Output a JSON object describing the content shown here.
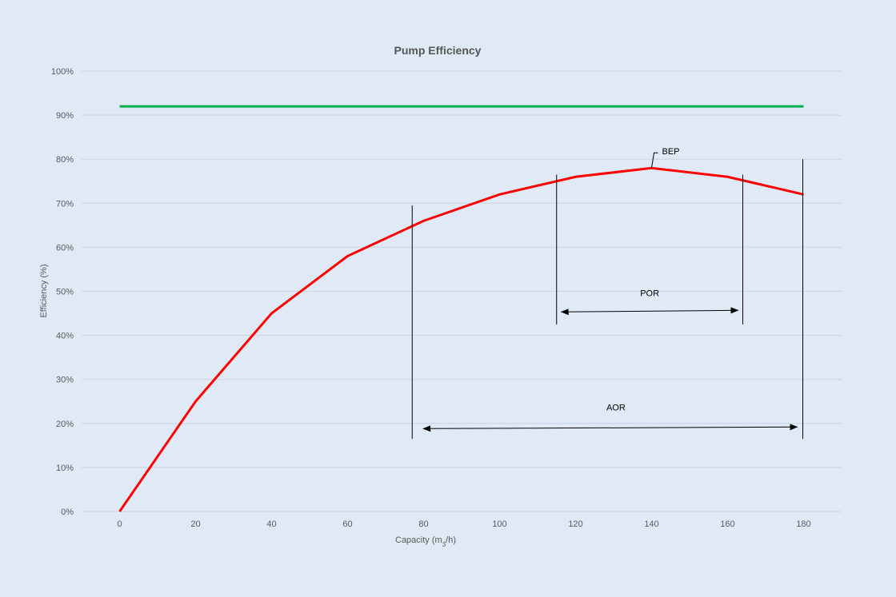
{
  "chart_data": {
    "type": "line",
    "title": "Pump Efficiency",
    "xlabel_parts": {
      "prefix": "Capacity (m",
      "sub": "3",
      "suffix": "/h)"
    },
    "ylabel": "Efficiency (%)",
    "x_ticks": [
      "0",
      "20",
      "40",
      "60",
      "80",
      "100",
      "120",
      "140",
      "160",
      "180"
    ],
    "y_ticks": [
      "0%",
      "10%",
      "20%",
      "30%",
      "40%",
      "50%",
      "60%",
      "70%",
      "80%",
      "90%",
      "100%"
    ],
    "xlim": [
      -10,
      190
    ],
    "ylim": [
      0,
      100
    ],
    "grid": "horizontal",
    "series": [
      {
        "x": [
          0,
          20,
          40,
          60,
          80,
          100,
          120,
          140,
          160,
          180
        ],
        "values": [
          0,
          25,
          45,
          58,
          66,
          72,
          76,
          78,
          76,
          72
        ],
        "color": "#ff0000"
      },
      {
        "x": [
          0,
          180
        ],
        "values": [
          92,
          92
        ],
        "color": "#00b050"
      }
    ],
    "annotations": {
      "bep": {
        "label": "BEP",
        "x": 140,
        "y": 78
      },
      "por": {
        "label": "POR",
        "x_start": 115,
        "x_end": 164,
        "arrow_y": 45.5,
        "line_top": 76.5,
        "line_bottom": 42.5
      },
      "aor": {
        "label": "AOR",
        "x_start": 77,
        "x_end": 180,
        "arrow_y": 19,
        "line_left_top": 69.5,
        "line_right_top": 80,
        "line_bottom": 16.5
      }
    }
  }
}
